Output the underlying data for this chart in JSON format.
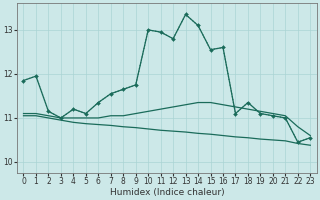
{
  "xlabel": "Humidex (Indice chaleur)",
  "bg_color": "#cce8e8",
  "line_color": "#1a6b5a",
  "grid_color": "#aad4d4",
  "xlim": [
    -0.5,
    23.5
  ],
  "ylim": [
    9.75,
    13.6
  ],
  "yticks": [
    10,
    11,
    12,
    13
  ],
  "xticks": [
    0,
    1,
    2,
    3,
    4,
    5,
    6,
    7,
    8,
    9,
    10,
    11,
    12,
    13,
    14,
    15,
    16,
    17,
    18,
    19,
    20,
    21,
    22,
    23
  ],
  "main_line": {
    "x": [
      0,
      1,
      2,
      3,
      4,
      5,
      6,
      7,
      8,
      9,
      10,
      11,
      12,
      13,
      14,
      15,
      16,
      17,
      18,
      19,
      20,
      21,
      22,
      23
    ],
    "y": [
      11.85,
      11.95,
      11.15,
      11.0,
      11.2,
      11.1,
      11.35,
      11.55,
      11.65,
      11.75,
      13.0,
      12.95,
      12.8,
      13.35,
      13.1,
      12.55,
      12.6,
      11.1,
      11.35,
      11.1,
      11.05,
      11.0,
      10.45,
      10.55
    ]
  },
  "flat_line1": {
    "x": [
      0,
      1,
      2,
      3,
      4,
      5,
      6,
      7,
      8,
      9,
      10,
      11,
      12,
      13,
      14,
      15,
      16,
      17,
      18,
      19,
      20,
      21,
      22,
      23
    ],
    "y": [
      11.1,
      11.1,
      11.05,
      11.0,
      11.0,
      11.0,
      11.0,
      11.05,
      11.05,
      11.1,
      11.15,
      11.2,
      11.25,
      11.3,
      11.35,
      11.35,
      11.3,
      11.25,
      11.2,
      11.15,
      11.1,
      11.05,
      10.8,
      10.6
    ]
  },
  "flat_line2": {
    "x": [
      0,
      1,
      2,
      3,
      4,
      5,
      6,
      7,
      8,
      9,
      10,
      11,
      12,
      13,
      14,
      15,
      16,
      17,
      18,
      19,
      20,
      21,
      22,
      23
    ],
    "y": [
      11.05,
      11.05,
      11.0,
      10.95,
      10.9,
      10.87,
      10.85,
      10.83,
      10.8,
      10.78,
      10.75,
      10.72,
      10.7,
      10.68,
      10.65,
      10.63,
      10.6,
      10.57,
      10.55,
      10.52,
      10.5,
      10.48,
      10.42,
      10.38
    ]
  }
}
